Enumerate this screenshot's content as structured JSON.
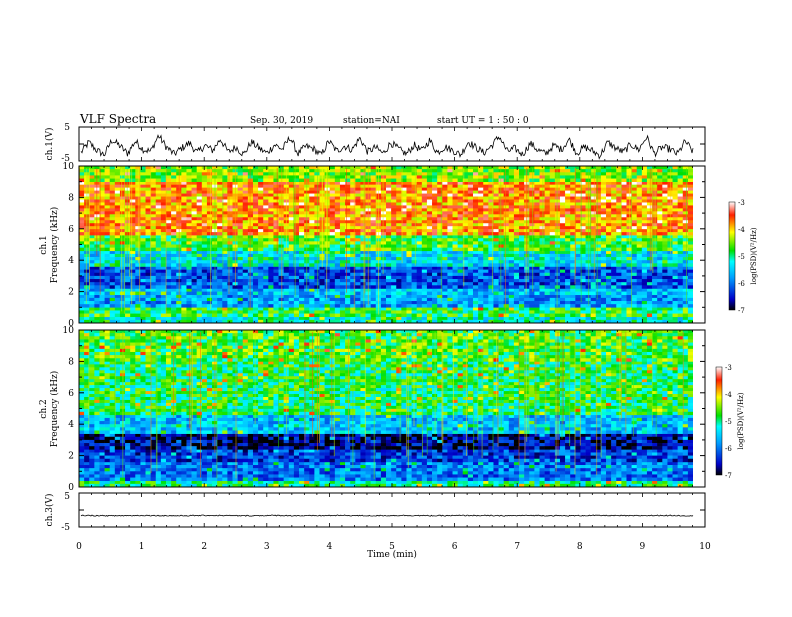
{
  "header": {
    "title": "VLF Spectra",
    "date": "Sep. 30, 2019",
    "station": "station=NAI",
    "start": "start  UT =   1 : 50 : 0"
  },
  "chart_data": [
    {
      "type": "line",
      "name_label": "ch.1(V)",
      "ylim": [
        -5,
        5
      ],
      "yticks": [
        "5",
        "-5"
      ],
      "xlim": [
        0,
        10
      ],
      "values": [
        -2.5,
        0.5,
        -1.8,
        -3.2,
        1.2,
        -0.5,
        -2.8,
        0.8,
        -1.5,
        -2.2,
        2.5,
        -0.8,
        -3.0,
        -1.2,
        0.3,
        -2.6,
        -0.4,
        -1.9,
        1.5,
        -2.4,
        -0.9,
        -3.1,
        0.6,
        -1.3,
        -2.7,
        -0.2,
        -1.6,
        2.0,
        -2.9,
        -0.7,
        -1.4,
        -3.3,
        0.9,
        -2.1,
        -0.6,
        -1.7,
        1.8,
        -2.3,
        -1.0,
        -2.8,
        0.4,
        -1.5,
        -3.0,
        -0.3,
        -2.0,
        1.1,
        -2.5,
        -0.8,
        -1.9,
        -3.2,
        0.7,
        -1.1,
        -2.6,
        -0.5,
        2.3,
        -2.2,
        -1.3,
        -3.1,
        0.2,
        -1.8,
        -2.9,
        -0.4,
        -1.6,
        1.4,
        -2.7,
        -0.9,
        -2.0,
        -3.4,
        0.5,
        -1.2,
        -2.4,
        -0.1,
        -1.7,
        2.1,
        -2.8,
        -1.0,
        -1.5,
        -3.0,
        0.8,
        -2.3
      ],
      "line_color": "#000000"
    },
    {
      "type": "heatmap",
      "name_label": "ch.1",
      "ylabel": "Frequency (kHz)",
      "ylim": [
        0,
        10
      ],
      "yticks": [
        "0",
        "2",
        "4",
        "6",
        "8",
        "10"
      ],
      "xlim": [
        0,
        10
      ],
      "colorbar": {
        "label": "log(PSD)(V²/Hz)",
        "range": [
          -7,
          -3
        ],
        "ticks": [
          "-3",
          "-4",
          "-5",
          "-6",
          "-7"
        ]
      },
      "bands": [
        {
          "from_khz": 0.0,
          "to_khz": 0.4,
          "level": -5.2
        },
        {
          "from_khz": 0.4,
          "to_khz": 1.0,
          "level": -4.8
        },
        {
          "from_khz": 1.0,
          "to_khz": 1.8,
          "level": -5.8
        },
        {
          "from_khz": 1.8,
          "to_khz": 2.2,
          "level": -5.6
        },
        {
          "from_khz": 2.2,
          "to_khz": 3.6,
          "level": -6.2
        },
        {
          "from_khz": 3.6,
          "to_khz": 4.6,
          "level": -5.4
        },
        {
          "from_khz": 4.6,
          "to_khz": 5.6,
          "level": -4.7
        },
        {
          "from_khz": 5.6,
          "to_khz": 9.0,
          "level": -3.8
        },
        {
          "from_khz": 9.0,
          "to_khz": 10.0,
          "level": -4.5
        }
      ]
    },
    {
      "type": "heatmap",
      "name_label": "ch.2",
      "ylabel": "Frequency (kHz)",
      "ylim": [
        0,
        10
      ],
      "yticks": [
        "0",
        "2",
        "4",
        "6",
        "8",
        "10"
      ],
      "xlim": [
        0,
        10
      ],
      "colorbar": {
        "label": "log(PSD)(V²/Hz)",
        "range": [
          -7,
          -3
        ],
        "ticks": [
          "-3",
          "-4",
          "-5",
          "-6",
          "-7"
        ]
      },
      "bands": [
        {
          "from_khz": 0.0,
          "to_khz": 0.4,
          "level": -5.0
        },
        {
          "from_khz": 0.4,
          "to_khz": 1.6,
          "level": -6.0
        },
        {
          "from_khz": 1.6,
          "to_khz": 2.4,
          "level": -6.3
        },
        {
          "from_khz": 2.4,
          "to_khz": 3.4,
          "level": -6.7
        },
        {
          "from_khz": 3.4,
          "to_khz": 4.6,
          "level": -5.6
        },
        {
          "from_khz": 4.6,
          "to_khz": 8.0,
          "level": -4.9
        },
        {
          "from_khz": 8.0,
          "to_khz": 10.0,
          "level": -4.7
        }
      ]
    },
    {
      "type": "line",
      "name_label": "ch.3(V)",
      "ylim": [
        -5,
        5
      ],
      "yticks": [
        "5",
        "-5"
      ],
      "xlim": [
        0,
        10
      ],
      "xlabel": "Time (min)",
      "xticks": [
        "0",
        "1",
        "2",
        "3",
        "4",
        "5",
        "6",
        "7",
        "8",
        "9",
        "10"
      ],
      "values": [
        -1.6,
        -1.7,
        -1.6,
        -1.7,
        -1.6,
        -1.7,
        -1.6,
        -1.7,
        -1.6,
        -1.7,
        -1.6,
        -1.7,
        -1.6,
        -1.7,
        -1.6,
        -1.7,
        -1.6,
        -1.7,
        -1.6,
        -1.7
      ],
      "line_color": "#000000"
    }
  ]
}
